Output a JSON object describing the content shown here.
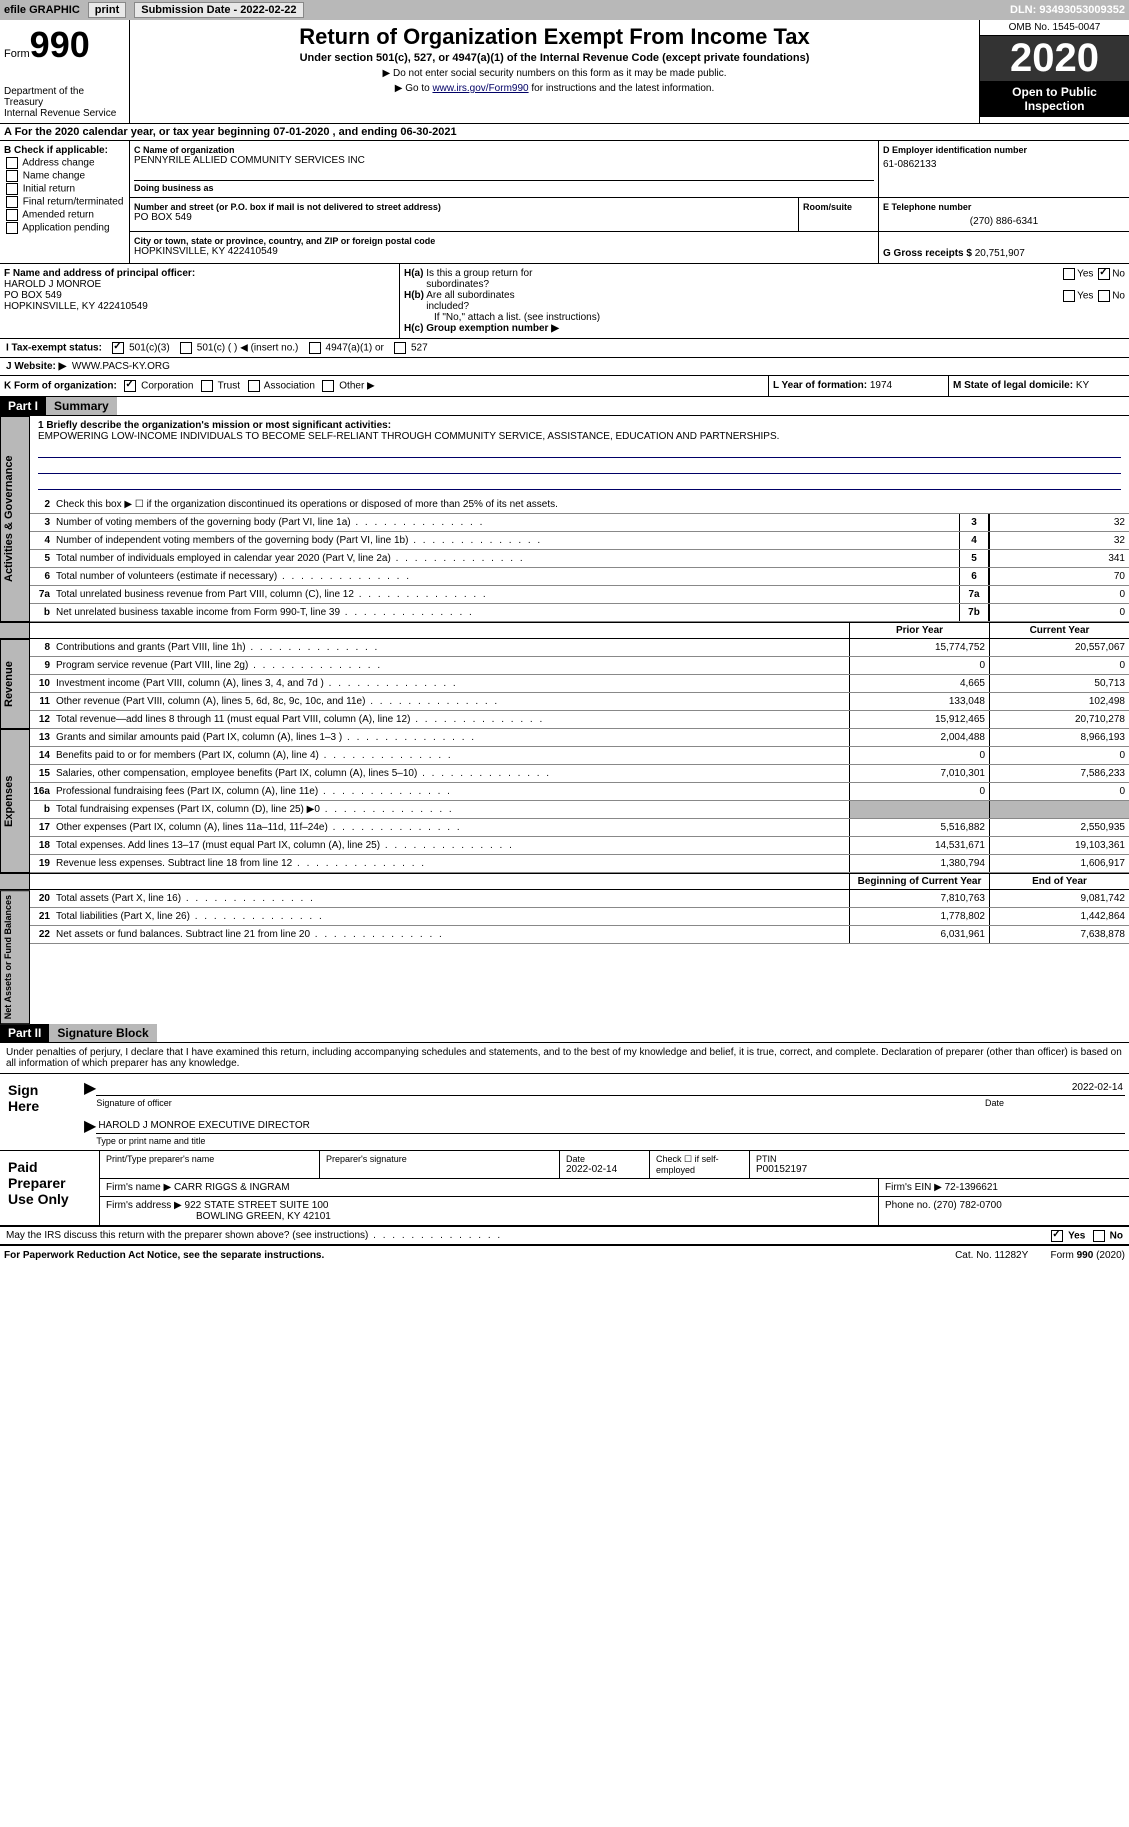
{
  "topbar": {
    "efile_label": "efile GRAPHIC",
    "print_btn": "print",
    "submission_label": "Submission Date - 2022-02-22",
    "dln": "DLN: 93493053009352"
  },
  "header": {
    "form_label": "Form",
    "form_number": "990",
    "dept": "Department of the Treasury\nInternal Revenue Service",
    "title": "Return of Organization Exempt From Income Tax",
    "subtitle": "Under section 501(c), 527, or 4947(a)(1) of the Internal Revenue Code (except private foundations)",
    "note1": "▶ Do not enter social security numbers on this form as it may be made public.",
    "note2_pre": "▶ Go to ",
    "note2_link": "www.irs.gov/Form990",
    "note2_post": " for instructions and the latest information.",
    "omb": "OMB No. 1545-0047",
    "year": "2020",
    "open": "Open to Public Inspection"
  },
  "line_a": "A For the 2020 calendar year, or tax year beginning 07-01-2020    , and ending 06-30-2021",
  "section_b": {
    "header": "B Check if applicable:",
    "items": [
      "Address change",
      "Name change",
      "Initial return",
      "Final return/terminated",
      "Amended return",
      "Application pending"
    ]
  },
  "section_c": {
    "name_label": "C Name of organization",
    "name": "PENNYRILE ALLIED COMMUNITY SERVICES INC",
    "dba_label": "Doing business as",
    "dba": "",
    "addr_label": "Number and street (or P.O. box if mail is not delivered to street address)",
    "addr": "PO BOX 549",
    "room_label": "Room/suite",
    "city_label": "City or town, state or province, country, and ZIP or foreign postal code",
    "city": "HOPKINSVILLE, KY  422410549"
  },
  "section_d": {
    "ein_label": "D Employer identification number",
    "ein": "61-0862133",
    "phone_label": "E Telephone number",
    "phone": "(270) 886-6341",
    "gross_label": "G Gross receipts $",
    "gross": "20,751,907"
  },
  "section_f": {
    "label": "F Name and address of principal officer:",
    "name": "HAROLD J MONROE",
    "addr1": "PO BOX 549",
    "addr2": "HOPKINSVILLE, KY  422410549"
  },
  "section_h": {
    "ha_label": "H(a)  Is this a group return for subordinates?",
    "hb_label": "H(b)  Are all subordinates included?",
    "hb_note": "If \"No,\" attach a list. (see instructions)",
    "hc_label": "H(c)  Group exemption number ▶",
    "yes": "Yes",
    "no": "No"
  },
  "line_i": {
    "label": "I   Tax-exempt status:",
    "opts": [
      "501(c)(3)",
      "501(c) (  ) ◀ (insert no.)",
      "4947(a)(1) or",
      "527"
    ]
  },
  "line_j": {
    "label": "J   Website: ▶",
    "value": "WWW.PACS-KY.ORG"
  },
  "line_k": {
    "label": "K Form of organization:",
    "opts": [
      "Corporation",
      "Trust",
      "Association",
      "Other ▶"
    ]
  },
  "line_l": {
    "label": "L Year of formation:",
    "value": "1974"
  },
  "line_m": {
    "label": "M State of legal domicile:",
    "value": "KY"
  },
  "part1": {
    "hdr": "Part I",
    "title": "Summary",
    "mission_label": "1  Briefly describe the organization's mission or most significant activities:",
    "mission": "EMPOWERING LOW-INCOME INDIVIDUALS TO BECOME SELF-RELIANT THROUGH COMMUNITY SERVICE, ASSISTANCE, EDUCATION AND PARTNERSHIPS.",
    "line2": "Check this box ▶ ☐  if the organization discontinued its operations or disposed of more than 25% of its net assets."
  },
  "side_labels": {
    "gov": "Activities & Governance",
    "rev": "Revenue",
    "exp": "Expenses",
    "net": "Net Assets or Fund Balances"
  },
  "col_headers": {
    "prior": "Prior Year",
    "current": "Current Year",
    "begin": "Beginning of Current Year",
    "end": "End of Year"
  },
  "gov_lines": [
    {
      "n": "3",
      "t": "Number of voting members of the governing body (Part VI, line 1a)",
      "box": "3",
      "v": "32"
    },
    {
      "n": "4",
      "t": "Number of independent voting members of the governing body (Part VI, line 1b)",
      "box": "4",
      "v": "32"
    },
    {
      "n": "5",
      "t": "Total number of individuals employed in calendar year 2020 (Part V, line 2a)",
      "box": "5",
      "v": "341"
    },
    {
      "n": "6",
      "t": "Total number of volunteers (estimate if necessary)",
      "box": "6",
      "v": "70"
    },
    {
      "n": "7a",
      "t": "Total unrelated business revenue from Part VIII, column (C), line 12",
      "box": "7a",
      "v": "0"
    },
    {
      "n": "b",
      "t": "Net unrelated business taxable income from Form 990-T, line 39",
      "box": "7b",
      "v": "0"
    }
  ],
  "rev_lines": [
    {
      "n": "8",
      "t": "Contributions and grants (Part VIII, line 1h)",
      "p": "15,774,752",
      "c": "20,557,067"
    },
    {
      "n": "9",
      "t": "Program service revenue (Part VIII, line 2g)",
      "p": "0",
      "c": "0"
    },
    {
      "n": "10",
      "t": "Investment income (Part VIII, column (A), lines 3, 4, and 7d )",
      "p": "4,665",
      "c": "50,713"
    },
    {
      "n": "11",
      "t": "Other revenue (Part VIII, column (A), lines 5, 6d, 8c, 9c, 10c, and 11e)",
      "p": "133,048",
      "c": "102,498"
    },
    {
      "n": "12",
      "t": "Total revenue—add lines 8 through 11 (must equal Part VIII, column (A), line 12)",
      "p": "15,912,465",
      "c": "20,710,278"
    }
  ],
  "exp_lines": [
    {
      "n": "13",
      "t": "Grants and similar amounts paid (Part IX, column (A), lines 1–3 )",
      "p": "2,004,488",
      "c": "8,966,193"
    },
    {
      "n": "14",
      "t": "Benefits paid to or for members (Part IX, column (A), line 4)",
      "p": "0",
      "c": "0"
    },
    {
      "n": "15",
      "t": "Salaries, other compensation, employee benefits (Part IX, column (A), lines 5–10)",
      "p": "7,010,301",
      "c": "7,586,233"
    },
    {
      "n": "16a",
      "t": "Professional fundraising fees (Part IX, column (A), line 11e)",
      "p": "0",
      "c": "0"
    },
    {
      "n": "b",
      "t": "Total fundraising expenses (Part IX, column (D), line 25) ▶0",
      "p": "",
      "c": "",
      "shaded": true
    },
    {
      "n": "17",
      "t": "Other expenses (Part IX, column (A), lines 11a–11d, 11f–24e)",
      "p": "5,516,882",
      "c": "2,550,935"
    },
    {
      "n": "18",
      "t": "Total expenses. Add lines 13–17 (must equal Part IX, column (A), line 25)",
      "p": "14,531,671",
      "c": "19,103,361"
    },
    {
      "n": "19",
      "t": "Revenue less expenses. Subtract line 18 from line 12",
      "p": "1,380,794",
      "c": "1,606,917"
    }
  ],
  "net_lines": [
    {
      "n": "20",
      "t": "Total assets (Part X, line 16)",
      "p": "7,810,763",
      "c": "9,081,742"
    },
    {
      "n": "21",
      "t": "Total liabilities (Part X, line 26)",
      "p": "1,778,802",
      "c": "1,442,864"
    },
    {
      "n": "22",
      "t": "Net assets or fund balances. Subtract line 21 from line 20",
      "p": "6,031,961",
      "c": "7,638,878"
    }
  ],
  "part2": {
    "hdr": "Part II",
    "title": "Signature Block",
    "decl": "Under penalties of perjury, I declare that I have examined this return, including accompanying schedules and statements, and to the best of my knowledge and belief, it is true, correct, and complete. Declaration of preparer (other than officer) is based on all information of which preparer has any knowledge."
  },
  "sign": {
    "label": "Sign Here",
    "sig_label": "Signature of officer",
    "date": "2022-02-14",
    "date_label": "Date",
    "name": "HAROLD J MONROE  EXECUTIVE DIRECTOR",
    "name_label": "Type or print name and title"
  },
  "prep": {
    "label": "Paid Preparer Use Only",
    "h1": "Print/Type preparer's name",
    "h2": "Preparer's signature",
    "h3": "Date",
    "date": "2022-02-14",
    "h4": "Check ☐ if self-employed",
    "h5": "PTIN",
    "ptin": "P00152197",
    "firm_label": "Firm's name    ▶",
    "firm": "CARR RIGGS & INGRAM",
    "ein_label": "Firm's EIN ▶",
    "ein": "72-1396621",
    "addr_label": "Firm's address ▶",
    "addr1": "922 STATE STREET SUITE 100",
    "addr2": "BOWLING GREEN, KY  42101",
    "phone_label": "Phone no.",
    "phone": "(270) 782-0700"
  },
  "discuss": {
    "text": "May the IRS discuss this return with the preparer shown above? (see instructions)",
    "yes": "Yes",
    "no": "No"
  },
  "footer": {
    "left": "For Paperwork Reduction Act Notice, see the separate instructions.",
    "mid": "Cat. No. 11282Y",
    "right": "Form 990 (2020)"
  }
}
